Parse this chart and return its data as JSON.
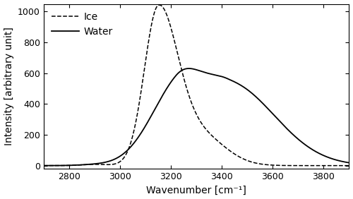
{
  "title": "",
  "xlabel": "Wavenumber [cm⁻¹]",
  "ylabel": "Intensity [arbitrary unit]",
  "xlim": [
    2700,
    3900
  ],
  "ylim": [
    -20,
    1050
  ],
  "xticks": [
    2800,
    3000,
    3200,
    3400,
    3600,
    3800
  ],
  "yticks": [
    0,
    200,
    400,
    600,
    800,
    1000
  ],
  "line_color": "#000000",
  "background_color": "#ffffff",
  "legend_ice": "Ice",
  "legend_water": "Water"
}
